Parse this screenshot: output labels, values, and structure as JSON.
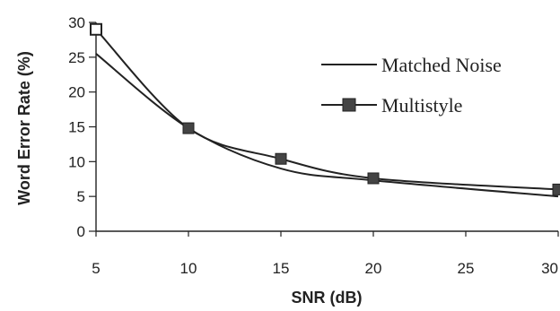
{
  "chart_data": {
    "type": "line",
    "title": "",
    "xlabel": "SNR (dB)",
    "ylabel": "Word Error Rate (%)",
    "xlim": [
      5,
      30
    ],
    "ylim": [
      0,
      30
    ],
    "x_ticks": [
      5,
      10,
      15,
      20,
      25,
      30
    ],
    "y_ticks": [
      0,
      5,
      10,
      15,
      20,
      25,
      30
    ],
    "grid": false,
    "legend_position": "top-right",
    "series": [
      {
        "name": "Matched Noise",
        "marker": "none",
        "color": "#222222",
        "x": [
          5,
          10,
          15,
          20,
          30
        ],
        "y": [
          25.5,
          14.8,
          9.0,
          7.3,
          5.0
        ]
      },
      {
        "name": "Multistyle",
        "marker": "square",
        "color": "#222222",
        "x": [
          5,
          10,
          15,
          20,
          30
        ],
        "y": [
          29.0,
          14.8,
          10.4,
          7.6,
          6.0
        ]
      }
    ]
  }
}
